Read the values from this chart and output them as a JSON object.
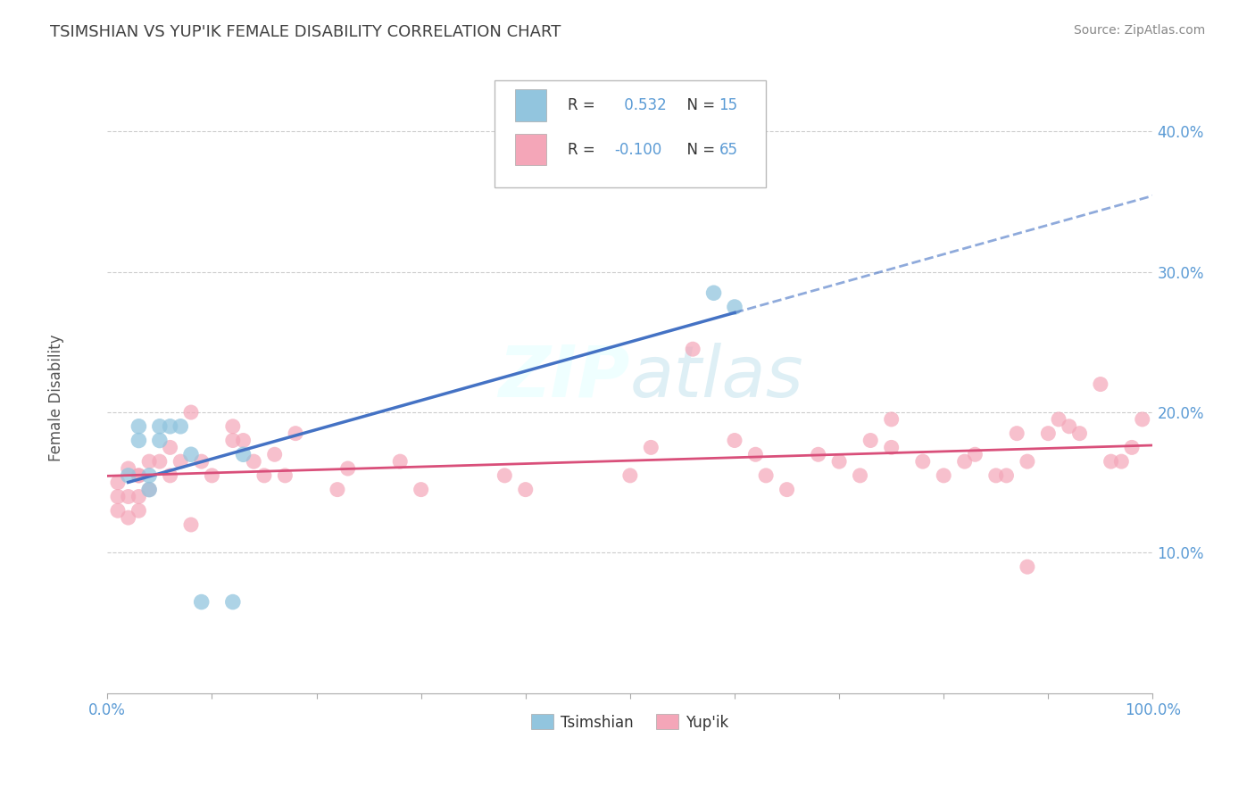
{
  "title": "TSIMSHIAN VS YUP'IK FEMALE DISABILITY CORRELATION CHART",
  "source": "Source: ZipAtlas.com",
  "ylabel": "Female Disability",
  "xlim": [
    0.0,
    1.0
  ],
  "ylim": [
    0.0,
    0.45
  ],
  "xticks": [
    0.0,
    0.1,
    0.2,
    0.3,
    0.4,
    0.5,
    0.6,
    0.7,
    0.8,
    0.9,
    1.0
  ],
  "xticklabels": [
    "0.0%",
    "",
    "",
    "",
    "",
    "",
    "",
    "",
    "",
    "",
    "100.0%"
  ],
  "yticks": [
    0.1,
    0.2,
    0.3,
    0.4
  ],
  "yticklabels": [
    "10.0%",
    "20.0%",
    "30.0%",
    "40.0%"
  ],
  "tsimshian_color": "#92c5de",
  "yupik_color": "#f4a6b8",
  "tsimshian_R": "0.532",
  "tsimshian_N": "15",
  "yupik_R": "-0.100",
  "yupik_N": "65",
  "tsimshian_x": [
    0.02,
    0.03,
    0.03,
    0.04,
    0.04,
    0.05,
    0.05,
    0.06,
    0.07,
    0.08,
    0.09,
    0.12,
    0.13,
    0.58,
    0.6
  ],
  "tsimshian_y": [
    0.155,
    0.19,
    0.18,
    0.155,
    0.145,
    0.19,
    0.18,
    0.19,
    0.19,
    0.17,
    0.065,
    0.065,
    0.17,
    0.285,
    0.275
  ],
  "yupik_x": [
    0.01,
    0.01,
    0.01,
    0.02,
    0.02,
    0.02,
    0.03,
    0.03,
    0.03,
    0.03,
    0.04,
    0.04,
    0.05,
    0.06,
    0.06,
    0.07,
    0.08,
    0.08,
    0.09,
    0.1,
    0.12,
    0.12,
    0.13,
    0.14,
    0.15,
    0.16,
    0.17,
    0.18,
    0.22,
    0.23,
    0.28,
    0.3,
    0.38,
    0.4,
    0.5,
    0.52,
    0.56,
    0.6,
    0.62,
    0.63,
    0.65,
    0.68,
    0.7,
    0.72,
    0.73,
    0.75,
    0.75,
    0.78,
    0.8,
    0.82,
    0.83,
    0.85,
    0.86,
    0.87,
    0.88,
    0.88,
    0.9,
    0.91,
    0.92,
    0.93,
    0.95,
    0.96,
    0.97,
    0.98,
    0.99
  ],
  "yupik_y": [
    0.14,
    0.13,
    0.15,
    0.125,
    0.14,
    0.16,
    0.14,
    0.155,
    0.13,
    0.155,
    0.165,
    0.145,
    0.165,
    0.175,
    0.155,
    0.165,
    0.2,
    0.12,
    0.165,
    0.155,
    0.18,
    0.19,
    0.18,
    0.165,
    0.155,
    0.17,
    0.155,
    0.185,
    0.145,
    0.16,
    0.165,
    0.145,
    0.155,
    0.145,
    0.155,
    0.175,
    0.245,
    0.18,
    0.17,
    0.155,
    0.145,
    0.17,
    0.165,
    0.155,
    0.18,
    0.175,
    0.195,
    0.165,
    0.155,
    0.165,
    0.17,
    0.155,
    0.155,
    0.185,
    0.09,
    0.165,
    0.185,
    0.195,
    0.19,
    0.185,
    0.22,
    0.165,
    0.165,
    0.175,
    0.195
  ],
  "watermark_line1": "ZIP",
  "watermark_line2": "atlas",
  "background_color": "#ffffff",
  "grid_color": "#cccccc",
  "title_color": "#404040",
  "axis_label_color": "#555555",
  "tick_label_color": "#5b9bd5",
  "legend_color": "#5b9bd5",
  "regression_ts_color": "#4472c4",
  "regression_yp_color": "#d94f7a"
}
